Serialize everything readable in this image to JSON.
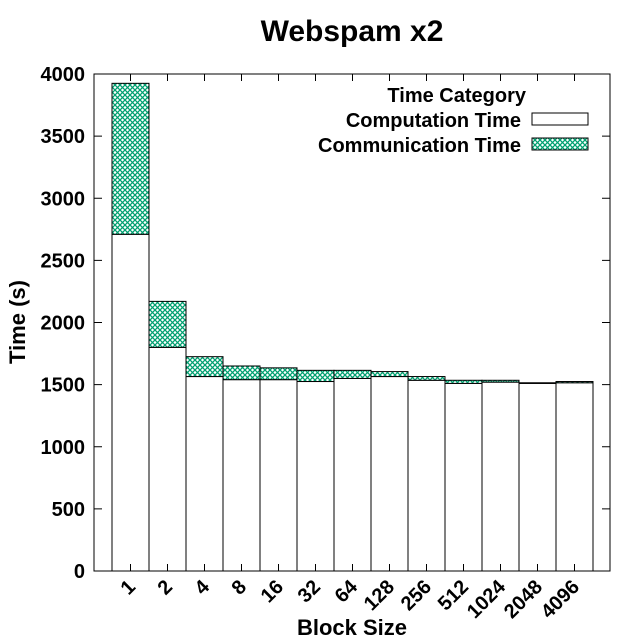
{
  "chart_data": {
    "type": "bar",
    "stacked": true,
    "title": "Webspam x2",
    "xlabel": "Block Size",
    "ylabel": "Time (s)",
    "ylim": [
      0,
      4000
    ],
    "yticks": [
      "0",
      "500",
      "1000",
      "1500",
      "2000",
      "2500",
      "3000",
      "3500",
      "4000"
    ],
    "categories": [
      "1",
      "2",
      "4",
      "8",
      "16",
      "32",
      "64",
      "128",
      "256",
      "512",
      "1024",
      "2048",
      "4096"
    ],
    "legend": {
      "title": "Time Category",
      "placement": "top-right"
    },
    "series": [
      {
        "name": "Computation Time",
        "fill": "#ffffff",
        "values": [
          2710,
          1800,
          1565,
          1540,
          1540,
          1525,
          1550,
          1565,
          1535,
          1510,
          1520,
          1510,
          1515
        ]
      },
      {
        "name": "Communication Time",
        "fill": "#00a070",
        "pattern": "crosshatch",
        "values": [
          1215,
          370,
          160,
          110,
          95,
          90,
          65,
          40,
          30,
          25,
          15,
          5,
          10
        ]
      }
    ]
  }
}
